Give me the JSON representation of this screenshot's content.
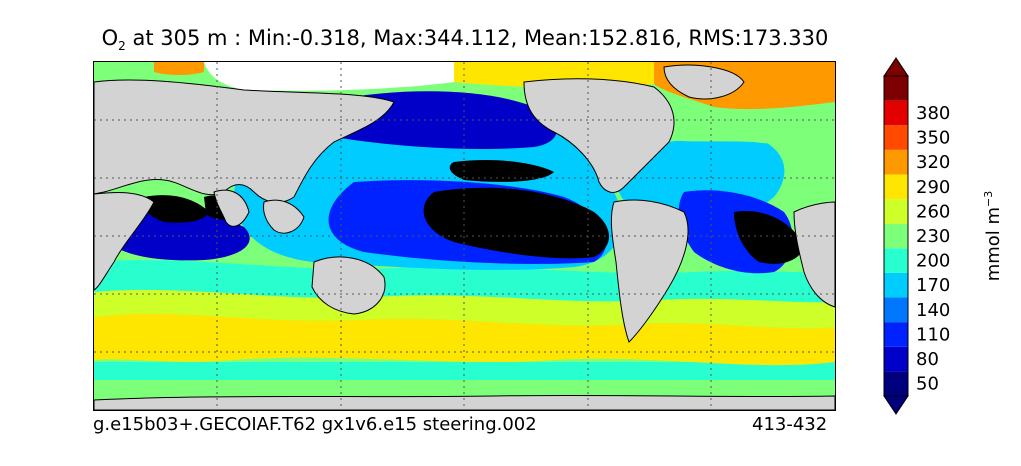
{
  "title": {
    "species": "O",
    "species_sub": "2",
    "text": " at 305 m : Min:-0.318, Max:344.112, Mean:152.816, RMS:173.330"
  },
  "footer": {
    "left": "g.e15b03+.GECOIAF.T62 gx1v6.e15 steering.002",
    "right": "413-432"
  },
  "colorbar": {
    "unit_main": "mmol m",
    "unit_sup": "−3",
    "tick_labels": [
      "50",
      "80",
      "110",
      "140",
      "170",
      "200",
      "230",
      "260",
      "290",
      "320",
      "350",
      "380"
    ],
    "tick_values": [
      50,
      80,
      110,
      140,
      170,
      200,
      230,
      260,
      290,
      320,
      350,
      380
    ],
    "colors": [
      "#00007f",
      "#0000c8",
      "#0022ff",
      "#0077ff",
      "#00ccff",
      "#29ffce",
      "#7dff7a",
      "#ceff29",
      "#ffe600",
      "#ff9900",
      "#ff4a00",
      "#e30000",
      "#7f0000"
    ],
    "under_color": "#00007f",
    "over_color": "#7f0000"
  },
  "map": {
    "land_color": "#d3d3d3",
    "missing_color": "#ffffff",
    "anoxic_color": "#000000"
  },
  "chart_data": {
    "type": "heatmap",
    "variable": "O2",
    "depth": "305 m",
    "stats": {
      "min": -0.318,
      "max": 344.112,
      "mean": 152.816,
      "rms": 173.33
    },
    "units": "mmol m^-3",
    "contour_levels": [
      50,
      80,
      110,
      140,
      170,
      200,
      230,
      260,
      290,
      320,
      350,
      380
    ],
    "colorbar_extend": "both",
    "grid": true,
    "colorbar_placement": "right"
  }
}
